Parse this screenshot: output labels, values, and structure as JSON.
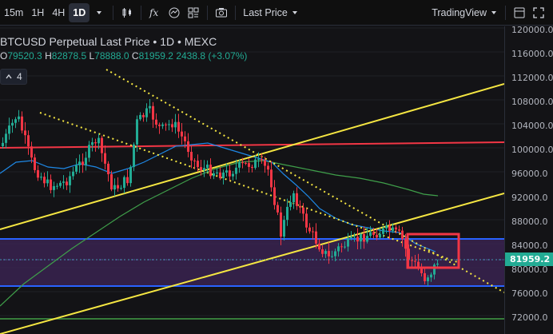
{
  "toolbar": {
    "timeframes": [
      "15m",
      "1H",
      "4H",
      "1D"
    ],
    "active_timeframe": "1D",
    "price_type_label": "Last Price",
    "tradingview_label": "TradingView",
    "icons": [
      "chevron-down-icon",
      "candles-icon",
      "fx-icon",
      "indicator-icon",
      "layout-icon",
      "camera-icon",
      "window-icon",
      "fullscreen-icon"
    ]
  },
  "legend": {
    "title": "BTCUSD Perpetual Last Price • 1D • MEXC",
    "open_label": "O",
    "open": "79520.3",
    "high_label": "H",
    "high": "82878.5",
    "low_label": "L",
    "low": "78888.0",
    "close_label": "C",
    "close": "81959.2",
    "change": "2438.8 (+3.07%)",
    "indicators_count": "4"
  },
  "price_axis": {
    "ticks": [
      "120000.0",
      "116000.0",
      "112000.0",
      "108000.0",
      "104000.0",
      "100000.0",
      "96000.0",
      "92000.0",
      "88000.0",
      "84000.0",
      "80000.0",
      "76000.0",
      "72000.0"
    ],
    "last_price": "81959.2"
  },
  "colors": {
    "up": "#22ab94",
    "down": "#f23645",
    "trendline_yellow": "#f5e642",
    "resistance_red": "#f23645",
    "zone_blue": "#2962ff",
    "ma_blue": "#1e88e5",
    "ma_green": "#4caf50",
    "highlight_box": "#f23645"
  }
}
